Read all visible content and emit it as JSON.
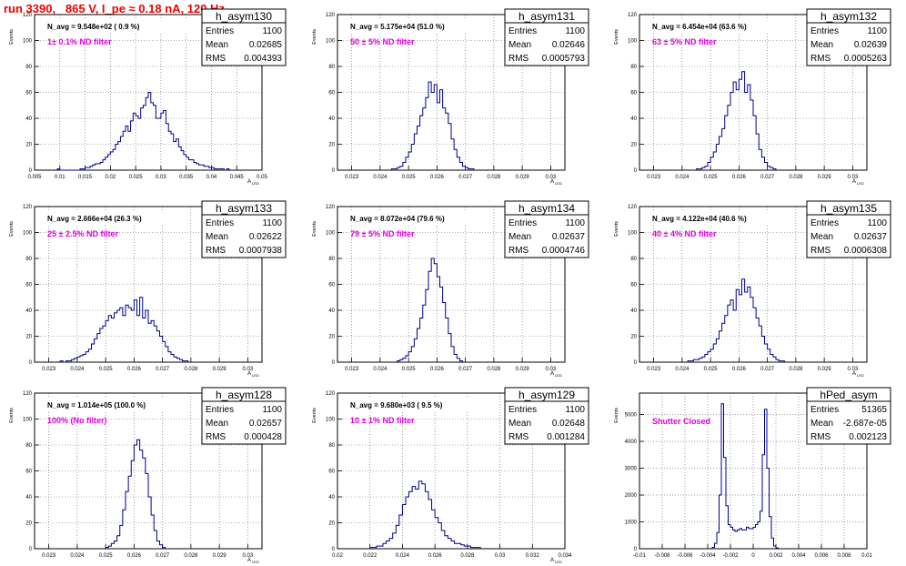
{
  "header": {
    "run_title": "run 3390,   865 V, I_pe ≈ 0.18 nA, 120 Hz"
  },
  "chart_data": [
    {
      "type": "histogram",
      "hist_name": "h_asym130",
      "stats": [
        [
          "Entries",
          "1100"
        ],
        [
          "Mean",
          "0.02685"
        ],
        [
          "RMS",
          "0.004393"
        ]
      ],
      "navg": "N_avg = 9.548e+02 ( 0.9 %)",
      "annotation": "1± 0.1% ND filter",
      "ylabel": "Events",
      "xlabel": "A",
      "xlabel_sub": "LED",
      "xlim": [
        0.005,
        0.05
      ],
      "ylim": [
        0,
        120
      ],
      "xticks": [
        "0.005",
        "0.01",
        "0.015",
        "0.02",
        "0.025",
        "0.03",
        "0.035",
        "0.04",
        "0.045",
        "0.05"
      ],
      "yticks": [
        "0",
        "20",
        "40",
        "60",
        "80",
        "100",
        "120"
      ],
      "bin_width": 0.0005,
      "hist_start": 0.0095,
      "counts": [
        1,
        0,
        0,
        0,
        0,
        0,
        0,
        0,
        0,
        1,
        1,
        2,
        2,
        3,
        4,
        5,
        5,
        6,
        8,
        10,
        12,
        14,
        16,
        20,
        22,
        26,
        30,
        34,
        30,
        38,
        44,
        42,
        40,
        48,
        50,
        56,
        60,
        52,
        50,
        40,
        40,
        44,
        46,
        36,
        30,
        28,
        22,
        24,
        18,
        15,
        12,
        10,
        8,
        8,
        6,
        5,
        4,
        4,
        3,
        3,
        2,
        2,
        1,
        1,
        1,
        1,
        0,
        1
      ]
    },
    {
      "type": "histogram",
      "hist_name": "h_asym131",
      "stats": [
        [
          "Entries",
          "1100"
        ],
        [
          "Mean",
          "0.02646"
        ],
        [
          "RMS",
          "0.0005793"
        ]
      ],
      "navg": "N_avg = 5.175e+04 (51.0 %)",
      "annotation": "50 ± 5% ND filter",
      "ylabel": "Events",
      "xlabel": "A",
      "xlabel_sub": "LED",
      "xlim": [
        0.0225,
        0.0305
      ],
      "ylim": [
        0,
        120
      ],
      "xticks": [
        "0.023",
        "0.024",
        "0.025",
        "0.026",
        "0.027",
        "0.028",
        "0.029",
        "0.03"
      ],
      "yticks": [
        "0",
        "20",
        "40",
        "60",
        "80",
        "100",
        "120"
      ],
      "bin_width": 0.0001,
      "hist_start": 0.0244,
      "counts": [
        1,
        1,
        2,
        3,
        6,
        10,
        14,
        20,
        28,
        34,
        42,
        48,
        56,
        68,
        60,
        66,
        52,
        62,
        48,
        44,
        36,
        24,
        16,
        10,
        6,
        3,
        2,
        1,
        1
      ]
    },
    {
      "type": "histogram",
      "hist_name": "h_asym132",
      "stats": [
        [
          "Entries",
          "1100"
        ],
        [
          "Mean",
          "0.02639"
        ],
        [
          "RMS",
          "0.0005263"
        ]
      ],
      "navg": "N_avg = 6.454e+04 (63.6 %)",
      "annotation": "63 ± 5% ND filter",
      "ylabel": "Events",
      "xlabel": "A",
      "xlabel_sub": "LED",
      "xlim": [
        0.0225,
        0.0305
      ],
      "ylim": [
        0,
        120
      ],
      "xticks": [
        "0.023",
        "0.024",
        "0.025",
        "0.026",
        "0.027",
        "0.028",
        "0.029",
        "0.03"
      ],
      "yticks": [
        "0",
        "20",
        "40",
        "60",
        "80",
        "100",
        "120"
      ],
      "bin_width": 0.0001,
      "hist_start": 0.0245,
      "counts": [
        1,
        1,
        2,
        3,
        6,
        10,
        14,
        20,
        26,
        32,
        42,
        50,
        60,
        68,
        62,
        70,
        76,
        60,
        66,
        54,
        42,
        28,
        16,
        10,
        6,
        3,
        2,
        1
      ]
    },
    {
      "type": "histogram",
      "hist_name": "h_asym133",
      "stats": [
        [
          "Entries",
          "1100"
        ],
        [
          "Mean",
          "0.02622"
        ],
        [
          "RMS",
          "0.0007938"
        ]
      ],
      "navg": "N_avg = 2.666e+04 (26.3 %)",
      "annotation": "25 ± 2.5% ND filter",
      "ylabel": "Events",
      "xlabel": "A",
      "xlabel_sub": "LED",
      "xlim": [
        0.0225,
        0.0305
      ],
      "ylim": [
        0,
        120
      ],
      "xticks": [
        "0.023",
        "0.024",
        "0.025",
        "0.026",
        "0.027",
        "0.028",
        "0.029",
        "0.03"
      ],
      "yticks": [
        "0",
        "20",
        "40",
        "60",
        "80",
        "100",
        "120"
      ],
      "bin_width": 0.0001,
      "hist_start": 0.0234,
      "counts": [
        1,
        0,
        1,
        1,
        2,
        3,
        4,
        5,
        6,
        8,
        10,
        14,
        18,
        22,
        26,
        28,
        32,
        36,
        34,
        38,
        40,
        42,
        36,
        44,
        42,
        40,
        48,
        36,
        50,
        34,
        40,
        30,
        32,
        28,
        24,
        20,
        16,
        12,
        8,
        6,
        4,
        3,
        2,
        1,
        1
      ]
    },
    {
      "type": "histogram",
      "hist_name": "h_asym134",
      "stats": [
        [
          "Entries",
          "1100"
        ],
        [
          "Mean",
          "0.02637"
        ],
        [
          "RMS",
          "0.0004746"
        ]
      ],
      "navg": "N_avg = 8.072e+04 (79.6 %)",
      "annotation": "79 ± 5% ND filter",
      "ylabel": "Events",
      "xlabel": "A",
      "xlabel_sub": "LED",
      "xlim": [
        0.0225,
        0.0305
      ],
      "ylim": [
        0,
        120
      ],
      "xticks": [
        "0.023",
        "0.024",
        "0.025",
        "0.026",
        "0.027",
        "0.028",
        "0.029",
        "0.03"
      ],
      "yticks": [
        "0",
        "20",
        "40",
        "60",
        "80",
        "100",
        "120"
      ],
      "bin_width": 0.0001,
      "hist_start": 0.0246,
      "counts": [
        1,
        2,
        3,
        5,
        8,
        12,
        18,
        26,
        34,
        44,
        56,
        70,
        80,
        76,
        66,
        58,
        46,
        34,
        22,
        12,
        6,
        3,
        1
      ]
    },
    {
      "type": "histogram",
      "hist_name": "h_asym135",
      "stats": [
        [
          "Entries",
          "1100"
        ],
        [
          "Mean",
          "0.02637"
        ],
        [
          "RMS",
          "0.0006308"
        ]
      ],
      "navg": "N_avg = 4.122e+04 (40.6 %)",
      "annotation": "40 ± 4% ND filter",
      "ylabel": "Events",
      "xlabel": "A",
      "xlabel_sub": "LED",
      "xlim": [
        0.0225,
        0.0305
      ],
      "ylim": [
        0,
        120
      ],
      "xticks": [
        "0.023",
        "0.024",
        "0.025",
        "0.026",
        "0.027",
        "0.028",
        "0.029",
        "0.03"
      ],
      "yticks": [
        "0",
        "20",
        "40",
        "60",
        "80",
        "100",
        "120"
      ],
      "bin_width": 0.0001,
      "hist_start": 0.0242,
      "counts": [
        1,
        1,
        2,
        2,
        3,
        4,
        6,
        8,
        10,
        14,
        18,
        24,
        30,
        36,
        44,
        48,
        40,
        56,
        52,
        64,
        54,
        58,
        50,
        42,
        34,
        28,
        20,
        14,
        10,
        6,
        4,
        2,
        1,
        1
      ]
    },
    {
      "type": "histogram",
      "hist_name": "h_asym128",
      "stats": [
        [
          "Entries",
          "1100"
        ],
        [
          "Mean",
          "0.02657"
        ],
        [
          "RMS",
          "0.000428"
        ]
      ],
      "navg": "N_avg = 1.014e+05 (100.0 %)",
      "annotation": "100% (No filter)",
      "ylabel": "Events",
      "xlabel": "A",
      "xlabel_sub": "LED",
      "xlim": [
        0.0225,
        0.0305
      ],
      "ylim": [
        0,
        120
      ],
      "xticks": [
        "0.023",
        "0.024",
        "0.025",
        "0.026",
        "0.027",
        "0.028",
        "0.029",
        "0.03"
      ],
      "yticks": [
        "0",
        "20",
        "40",
        "60",
        "80",
        "100",
        "120"
      ],
      "bin_width": 0.0001,
      "hist_start": 0.025,
      "counts": [
        1,
        2,
        4,
        6,
        10,
        18,
        30,
        44,
        56,
        68,
        80,
        84,
        76,
        70,
        58,
        40,
        26,
        14,
        6,
        3,
        1
      ]
    },
    {
      "type": "histogram",
      "hist_name": "h_asym129",
      "stats": [
        [
          "Entries",
          "1100"
        ],
        [
          "Mean",
          "0.02648"
        ],
        [
          "RMS",
          "0.001284"
        ]
      ],
      "navg": "N_avg = 9.680e+03 ( 9.5 %)",
      "annotation": "10 ± 1% ND filter",
      "ylabel": "Events",
      "xlabel": "A",
      "xlabel_sub": "LED",
      "xlim": [
        0.02,
        0.034
      ],
      "ylim": [
        0,
        120
      ],
      "xticks": [
        "0.02",
        "0.022",
        "0.024",
        "0.026",
        "0.028",
        "0.03",
        "0.032",
        "0.034"
      ],
      "yticks": [
        "0",
        "20",
        "40",
        "60",
        "80",
        "100",
        "120"
      ],
      "bin_width": 0.0002,
      "hist_start": 0.022,
      "counts": [
        1,
        1,
        2,
        2,
        4,
        6,
        8,
        12,
        18,
        26,
        34,
        40,
        44,
        48,
        46,
        52,
        50,
        44,
        38,
        30,
        24,
        20,
        14,
        10,
        8,
        6,
        4,
        4,
        3,
        2,
        2,
        1,
        1,
        1
      ]
    },
    {
      "type": "histogram",
      "hist_name": "hPed_asym",
      "stats": [
        [
          "Entries",
          "51365"
        ],
        [
          "Mean",
          "-2.687e-05"
        ],
        [
          "RMS",
          "0.002123"
        ]
      ],
      "navg": "",
      "annotation": "Shutter Closed",
      "ylabel": "Events",
      "xlabel": "",
      "xlabel_sub": "",
      "xlim": [
        -0.01,
        0.01
      ],
      "ylim": [
        0,
        5800
      ],
      "xticks": [
        "-0.01",
        "-0.008",
        "-0.006",
        "-0.004",
        "-0.002",
        "0",
        "0.002",
        "0.004",
        "0.006",
        "0.008",
        "0.01"
      ],
      "yticks": [
        "0",
        "1000",
        "2000",
        "3000",
        "4000",
        "5000"
      ],
      "bin_width": 0.0002,
      "hist_start": -0.0036,
      "counts": [
        50,
        200,
        600,
        2000,
        5400,
        3400,
        1600,
        900,
        800,
        700,
        650,
        700,
        750,
        700,
        700,
        800,
        750,
        750,
        800,
        900,
        1000,
        1400,
        3500,
        5200,
        3000,
        1200,
        400,
        100,
        30
      ]
    }
  ]
}
